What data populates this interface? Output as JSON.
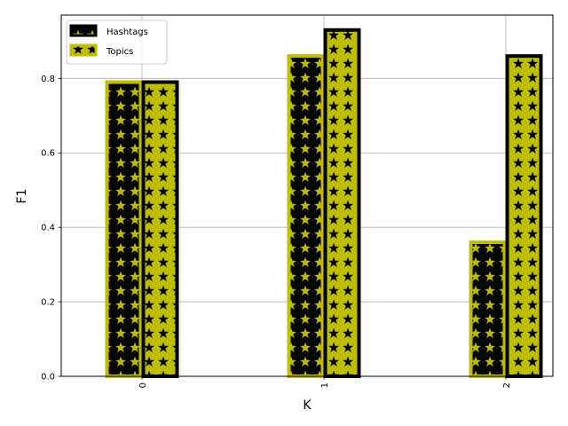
{
  "chart_data": {
    "type": "bar",
    "title": "",
    "xlabel": "K",
    "ylabel": "F1",
    "categories": [
      "0",
      "1",
      "2"
    ],
    "series": [
      {
        "name": "Hashtags",
        "values": [
          0.79,
          0.86,
          0.36
        ],
        "fill": "#000000",
        "edge": "#bfbf00",
        "hatch_color": "#bfbf00"
      },
      {
        "name": "Topics",
        "values": [
          0.79,
          0.93,
          0.86
        ],
        "fill": "#bfbf00",
        "edge": "#000000",
        "hatch_color": "#000000"
      }
    ],
    "ylim": [
      0,
      0.97
    ],
    "yticks": [
      "0.0",
      "0.2",
      "0.4",
      "0.6",
      "0.8"
    ],
    "grid": true,
    "legend": "top-left",
    "xtick_rotation": "vertical"
  }
}
